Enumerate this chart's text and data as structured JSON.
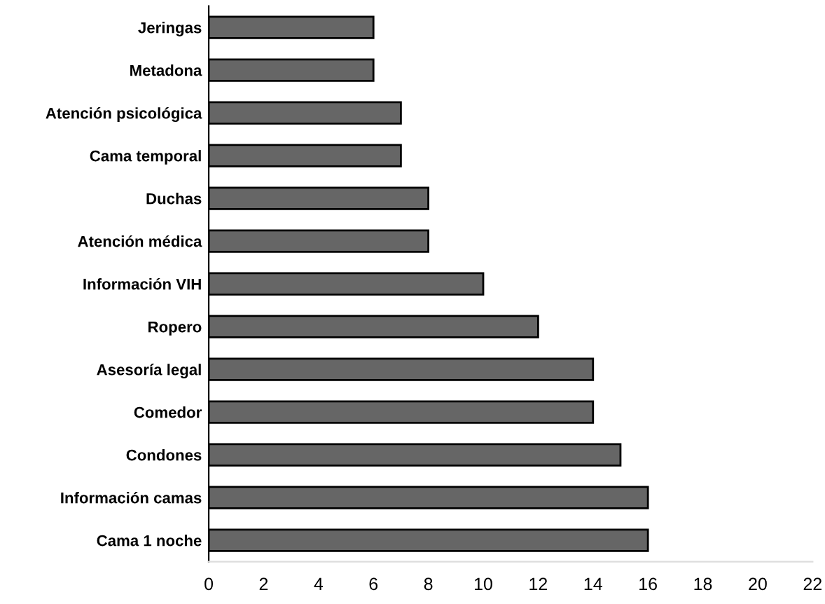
{
  "chart_data": {
    "type": "bar",
    "orientation": "horizontal",
    "categories": [
      "Jeringas",
      "Metadona",
      "Atención psicológica",
      "Cama temporal",
      "Duchas",
      "Atención médica",
      "Información VIH",
      "Ropero",
      "Asesoría legal",
      "Comedor",
      "Condones",
      "Información camas",
      "Cama 1 noche"
    ],
    "values": [
      6,
      6,
      7,
      7,
      8,
      8,
      10,
      12,
      14,
      14,
      15,
      16,
      16
    ],
    "color": "#666666",
    "xlim": [
      0,
      22
    ],
    "xticks": [
      0,
      2,
      4,
      6,
      8,
      10,
      12,
      14,
      16,
      18,
      20,
      22
    ],
    "grid": false,
    "legend": false
  }
}
